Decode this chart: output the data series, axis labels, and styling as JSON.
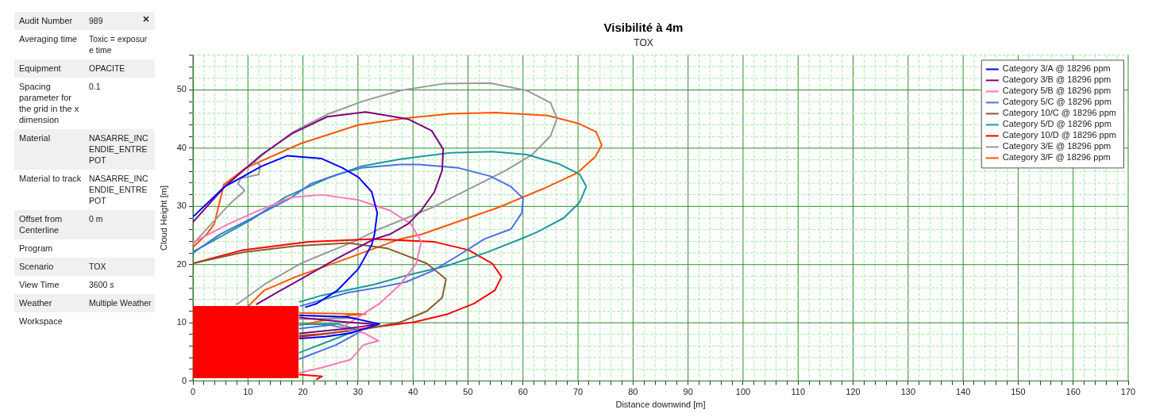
{
  "chart_data": [
    {
      "type": "other",
      "categories": [
        "Audit Number",
        "Averaging time",
        "Equipment",
        "Spacing parameter for the grid in the x dimension",
        "Material",
        "Material to track",
        "Offset from Centerline",
        "Program",
        "Scenario",
        "View Time",
        "Weather",
        "Workspace"
      ],
      "value_labels": [
        "989",
        "Toxic = exposure time",
        "OPACITE",
        "0.1",
        "NASARRE_INCENDIE_ENTREPOT",
        "NASARRE_INCENDIE_ENTREPOT",
        "0 m",
        null,
        "TOX",
        "3600 s",
        "Multiple Weather",
        null
      ]
    },
    {
      "type": "line",
      "title": "Visibilité à 4m",
      "subtitle": "TOX",
      "xlabel": "Distance downwind [m]",
      "ylabel": "Cloud Height [m]",
      "xlim": [
        0,
        170
      ],
      "ylim": [
        0,
        56
      ],
      "xticks": [
        0,
        {
          "value": 2,
          "label": null
        },
        {
          "value": 4,
          "label": null
        },
        {
          "value": 6,
          "label": null
        },
        {
          "value": 8,
          "label": null
        },
        10,
        {
          "value": 12,
          "label": null
        },
        {
          "value": 14,
          "label": null
        },
        {
          "value": 16,
          "label": null
        },
        {
          "value": 18,
          "label": null
        },
        20,
        {
          "value": 22,
          "label": null
        },
        {
          "value": 24,
          "label": null
        },
        {
          "value": 26,
          "label": null
        },
        {
          "value": 28,
          "label": null
        },
        30,
        {
          "value": 32,
          "label": null
        },
        {
          "value": 34,
          "label": null
        },
        {
          "value": 36,
          "label": null
        },
        {
          "value": 38,
          "label": null
        },
        40,
        {
          "value": 42,
          "label": null
        },
        {
          "value": 44,
          "label": null
        },
        {
          "value": 46,
          "label": null
        },
        {
          "value": 48,
          "label": null
        },
        50,
        {
          "value": 52,
          "label": null
        },
        {
          "value": 54,
          "label": null
        },
        {
          "value": 56,
          "label": null
        },
        {
          "value": 58,
          "label": null
        },
        60,
        {
          "value": 62,
          "label": null
        },
        {
          "value": 64,
          "label": null
        },
        {
          "value": 66,
          "label": null
        },
        {
          "value": 68,
          "label": null
        },
        70,
        {
          "value": 72,
          "label": null
        },
        {
          "value": 74,
          "label": null
        },
        {
          "value": 76,
          "label": null
        },
        {
          "value": 78,
          "label": null
        },
        80,
        {
          "value": 82,
          "label": null
        },
        {
          "value": 84,
          "label": null
        },
        {
          "value": 86,
          "label": null
        },
        {
          "value": 88,
          "label": null
        },
        90,
        {
          "value": 92,
          "label": null
        },
        {
          "value": 94,
          "label": null
        },
        {
          "value": 96,
          "label": null
        },
        {
          "value": 98,
          "label": null
        },
        100,
        {
          "value": 102,
          "label": null
        },
        {
          "value": 104,
          "label": null
        },
        {
          "value": 106,
          "label": null
        },
        {
          "value": 108,
          "label": null
        },
        110,
        {
          "value": 112,
          "label": null
        },
        {
          "value": 114,
          "label": null
        },
        {
          "value": 116,
          "label": null
        },
        {
          "value": 118,
          "label": null
        },
        120,
        {
          "value": 122,
          "label": null
        },
        {
          "value": 124,
          "label": null
        },
        {
          "value": 126,
          "label": null
        },
        {
          "value": 128,
          "label": null
        },
        130,
        {
          "value": 132,
          "label": null
        },
        {
          "value": 134,
          "label": null
        },
        {
          "value": 136,
          "label": null
        },
        {
          "value": 138,
          "label": null
        },
        140,
        {
          "value": 142,
          "label": null
        },
        {
          "value": 144,
          "label": null
        },
        {
          "value": 146,
          "label": null
        },
        {
          "value": 148,
          "label": null
        },
        150,
        {
          "value": 152,
          "label": null
        },
        {
          "value": 154,
          "label": null
        },
        {
          "value": 156,
          "label": null
        },
        {
          "value": 158,
          "label": null
        },
        160,
        {
          "value": 162,
          "label": null
        },
        {
          "value": 164,
          "label": null
        },
        {
          "value": 166,
          "label": null
        },
        {
          "value": 168,
          "label": null
        },
        170
      ],
      "yticks": [
        0,
        {
          "value": 2,
          "label": null
        },
        {
          "value": 4,
          "label": null
        },
        {
          "value": 6,
          "label": null
        },
        {
          "value": 8,
          "label": null
        },
        10,
        {
          "value": 12,
          "label": null
        },
        {
          "value": 14,
          "label": null
        },
        {
          "value": 16,
          "label": null
        },
        {
          "value": 18,
          "label": null
        },
        20,
        {
          "value": 22,
          "label": null
        },
        {
          "value": 24,
          "label": null
        },
        {
          "value": 26,
          "label": null
        },
        {
          "value": 28,
          "label": null
        },
        30,
        {
          "value": 32,
          "label": null
        },
        {
          "value": 34,
          "label": null
        },
        {
          "value": 36,
          "label": null
        },
        {
          "value": 38,
          "label": null
        },
        40,
        {
          "value": 42,
          "label": null
        },
        {
          "value": 44,
          "label": null
        },
        {
          "value": 46,
          "label": null
        },
        {
          "value": 48,
          "label": null
        },
        50,
        {
          "value": 52,
          "label": null
        },
        {
          "value": 54,
          "label": null
        },
        {
          "value": 56,
          "label": null
        }
      ],
      "grid": true,
      "legend": "top right",
      "series": [
        {
          "name": "Category 3/A @ 18296 ppm",
          "color": "#0000ff",
          "x": [
            0,
            5.8,
            12.5,
            17.2,
            23.4,
            27.2,
            30.1,
            32.5,
            33.5,
            33,
            32.5,
            30.1,
            26.3,
            22.5,
            20.5,
            null,
            19.4,
            28,
            33.9,
            29,
            24,
            19.4
          ],
          "values": [
            28.2,
            33.4,
            36.9,
            38.7,
            38.2,
            36.6,
            35,
            32.5,
            28.9,
            25.2,
            23.4,
            19.3,
            15.6,
            13.3,
            12.7,
            null,
            11.3,
            11,
            9.8,
            8.3,
            7.6,
            7.3
          ]
        },
        {
          "name": "Category 3/B @ 18296 ppm",
          "color": "#800080",
          "x": [
            0,
            5.8,
            12.5,
            18.2,
            24.4,
            31.4,
            39.1,
            43.4,
            45.5,
            45.3,
            43.9,
            41.5,
            39.1,
            35.8,
            33,
            26.3,
            19.6,
            15.3,
            11.6,
            null,
            19.4,
            27,
            33.5,
            27,
            19.4
          ],
          "values": [
            27.3,
            33.4,
            38.9,
            42.6,
            45.4,
            46.2,
            45,
            43,
            39.8,
            36.2,
            32.5,
            29.3,
            27,
            25.2,
            24.4,
            21.1,
            17.5,
            15.2,
            13.2,
            null,
            10.9,
            10.2,
            9.7,
            8.9,
            8.2
          ]
        },
        {
          "name": "Category 5/B @ 18296 ppm",
          "color": "#ff77bb",
          "x": [
            0,
            6.3,
            11.5,
            17.7,
            23.4,
            30.1,
            35.8,
            39.6,
            41.5,
            40.6,
            37.7,
            33.9,
            30.1,
            26.8,
            31,
            33.7,
            31,
            28.7,
            23.4,
            19.4
          ],
          "values": [
            23.8,
            26.9,
            29.1,
            31.5,
            32,
            31.1,
            29.3,
            27,
            23.9,
            20.2,
            16.6,
            13.3,
            11,
            9,
            8.3,
            6.9,
            6.2,
            3.7,
            2.3,
            1.4
          ]
        },
        {
          "name": "Category 5/C @ 18296 ppm",
          "color": "#4a6fe3",
          "x": [
            0,
            4.9,
            10.6,
            17.7,
            21.5,
            26.3,
            30.6,
            37.7,
            41.1,
            48.3,
            54,
            57.8,
            60,
            59.8,
            57.8,
            53,
            48.3,
            43.5,
            38.7,
            34,
            28.2,
            19.6,
            null,
            19.4,
            25,
            30.5,
            26,
            19.4
          ],
          "values": [
            22,
            25.2,
            27.9,
            31.4,
            33.9,
            35.5,
            36.6,
            37.2,
            37.2,
            36.6,
            35.2,
            33.4,
            31.4,
            28.9,
            26.1,
            24.4,
            21.6,
            18.9,
            17,
            16.1,
            15.2,
            12.9,
            null,
            9,
            9.6,
            8.5,
            6.2,
            3.8
          ]
        },
        {
          "name": "Category 10/C @ 18296 ppm",
          "color": "#8b5a2b",
          "x": [
            0,
            9.1,
            18.7,
            28.2,
            35.3,
            42.5,
            46,
            45.3,
            42.5,
            37.7,
            30.6,
            23.4,
            19.4
          ],
          "values": [
            20.2,
            22.1,
            23.2,
            23.7,
            22.8,
            20.2,
            17.5,
            14.3,
            12,
            10.1,
            8.8,
            8.1,
            7.8
          ]
        },
        {
          "name": "Category 5/D @ 18296 ppm",
          "color": "#1a9a9a",
          "x": [
            0,
            5.8,
            10.6,
            16.8,
            24.4,
            30.6,
            37.7,
            46.8,
            54.5,
            60.7,
            66.5,
            70.3,
            71.5,
            70.3,
            67.4,
            62.6,
            60.1,
            53.4,
            46.2,
            39.1,
            33,
            23.4,
            19.4,
            null,
            19.4,
            26.3,
            30,
            26.3,
            19.4
          ],
          "values": [
            22.2,
            25.2,
            27.7,
            31.6,
            34.8,
            36.9,
            38.1,
            39.2,
            39.4,
            38.9,
            37.3,
            35.5,
            33.4,
            30.7,
            28,
            25.6,
            24.6,
            22.1,
            19.8,
            18.2,
            16.6,
            14.7,
            13.6,
            null,
            9.7,
            9.8,
            8.8,
            7.4,
            4.9
          ]
        },
        {
          "name": "Category 10/D @ 18296 ppm",
          "color": "#ff0000",
          "x": [
            0,
            9.1,
            21,
            33,
            43.9,
            50.1,
            54.4,
            56.1,
            54.9,
            51.1,
            46.3,
            40.1,
            34.3,
            23.4,
            19.4,
            null,
            19.4,
            23.5,
            22.5
          ],
          "values": [
            20.2,
            22.5,
            23.9,
            24.4,
            23.9,
            22.5,
            20.2,
            17.9,
            15.6,
            13.3,
            11.5,
            10.1,
            9.4,
            8,
            7.6,
            null,
            1.1,
            0.8,
            0.3
          ]
        },
        {
          "name": "Category 3/E @ 18296 ppm",
          "color": "#999999",
          "x": [
            0,
            2.5,
            6.8,
            9.4,
            8.2,
            8.7,
            12,
            12.2,
            11.1,
            13.4,
            18.2,
            24.4,
            31,
            37.7,
            45.8,
            54,
            60.7,
            65,
            66.2,
            65,
            61.7,
            56.9,
            50.2,
            43.5,
            33.9,
            29.1,
            19.6,
            13,
            8.2,
            7.9,
            null,
            19.4,
            30,
            19.4
          ],
          "values": [
            23.5,
            26.1,
            30.5,
            32.7,
            33.9,
            34.8,
            35.5,
            37.1,
            37.6,
            39.4,
            42.8,
            45.8,
            48.1,
            49.9,
            51.1,
            51.2,
            49.9,
            47.8,
            45.1,
            42.1,
            38.9,
            36.2,
            33,
            29.8,
            26.1,
            23.9,
            20.2,
            16.6,
            13.3,
            13.2,
            null,
            11.3,
            10.8,
            10.6
          ]
        },
        {
          "name": "Category 3/F @ 18296 ppm",
          "color": "#ff5500",
          "x": [
            0,
            2.5,
            3.9,
            5.6,
            9.6,
            19.6,
            30.1,
            39.1,
            46.8,
            55,
            64.5,
            70.2,
            73.3,
            74.3,
            73.1,
            69.8,
            63.6,
            55.5,
            41.6,
            37.7,
            28.2,
            18.7,
            13,
            10.1,
            null,
            19.4,
            31.4,
            28.5,
            19.4
          ],
          "values": [
            23,
            25.2,
            27,
            33.7,
            36.6,
            40.8,
            44,
            45.2,
            45.9,
            46.1,
            45.6,
            44.2,
            42.8,
            40.5,
            38.5,
            35.7,
            33,
            29.8,
            25.2,
            24.4,
            21.1,
            17.9,
            15.6,
            12.9,
            null,
            11.7,
            11.5,
            11.3,
            9.6
          ]
        }
      ]
    }
  ]
}
